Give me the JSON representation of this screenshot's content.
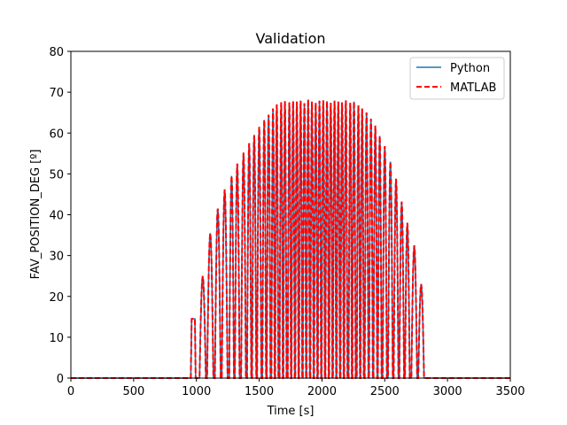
{
  "chart_data": {
    "type": "line",
    "title": "Validation",
    "xlabel": "Time [s]",
    "ylabel": "FAV_POSITION_DEG [º]",
    "xlim": [
      0,
      3500
    ],
    "ylim": [
      0,
      80
    ],
    "xticks": [
      0,
      500,
      1000,
      1500,
      2000,
      2500,
      3000,
      3500
    ],
    "yticks": [
      0,
      10,
      20,
      30,
      40,
      50,
      60,
      70,
      80
    ],
    "grid": false,
    "legend_position": "top-right",
    "series": [
      {
        "name": "Python",
        "color": "#1f77b4",
        "style": "solid",
        "peak_x": [
          975,
          1050,
          1110,
          1170,
          1225,
          1280,
          1325,
          1375,
          1420,
          1460,
          1500,
          1540,
          1575,
          1610,
          1640,
          1675,
          1705,
          1740,
          1770,
          1800,
          1830,
          1860,
          1890,
          1920,
          1950,
          1980,
          2010,
          2040,
          2070,
          2100,
          2130,
          2160,
          2190,
          2225,
          2255,
          2290,
          2320,
          2355,
          2390,
          2425,
          2460,
          2500,
          2545,
          2590,
          2635,
          2680,
          2735,
          2790,
          2845
        ],
        "peak_y": [
          14.5,
          25,
          35.5,
          41.5,
          46.2,
          49.5,
          52.5,
          55.2,
          57.5,
          59.5,
          61.5,
          63.2,
          64.5,
          66,
          67,
          67.5,
          67.8,
          67.5,
          67.8,
          67.7,
          67.9,
          67.3,
          68.2,
          67.7,
          67.4,
          67.9,
          68,
          67.8,
          67.4,
          67.9,
          67.7,
          67.5,
          68,
          67.4,
          67.7,
          66.8,
          66,
          65,
          63.5,
          61.8,
          59.3,
          56.8,
          53,
          48.8,
          43.2,
          38,
          32.5,
          23,
          0
        ]
      },
      {
        "name": "MATLAB",
        "color": "#ff0000",
        "style": "dashed",
        "same_as": "Python"
      }
    ]
  }
}
